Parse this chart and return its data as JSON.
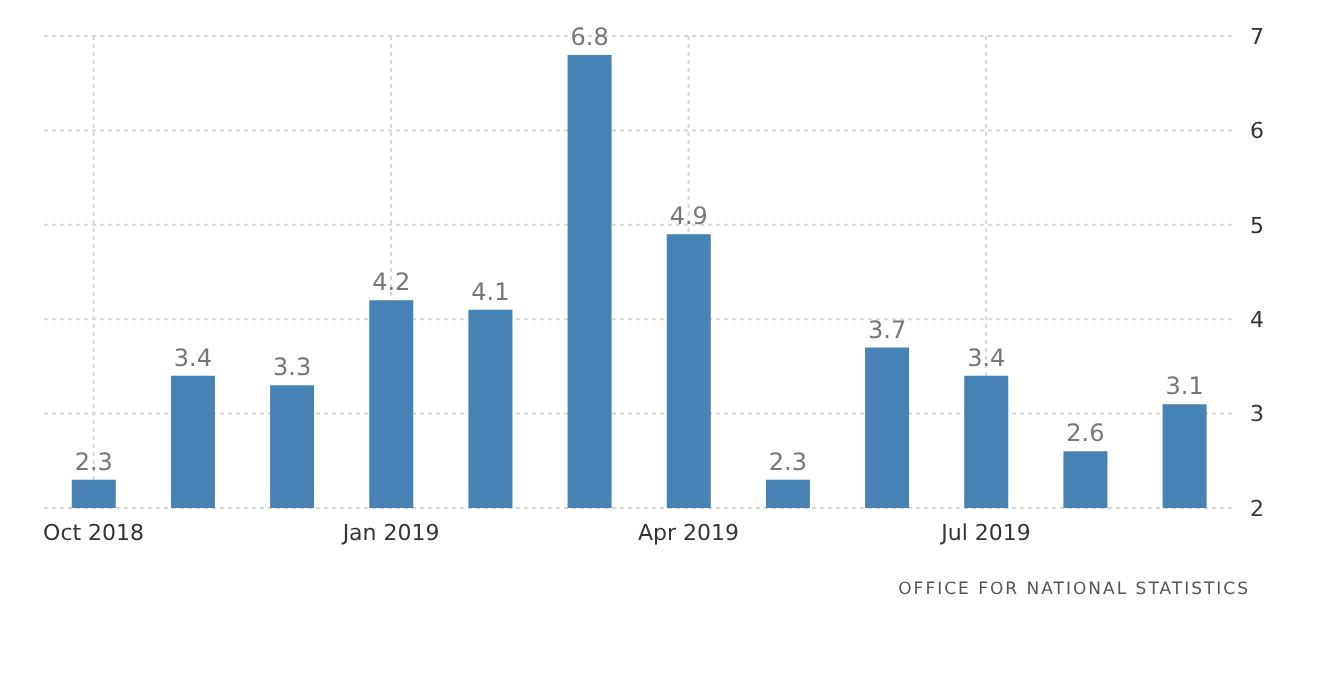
{
  "chart_data": {
    "type": "bar",
    "categories": [
      "Oct 2018",
      null,
      null,
      "Jan 2019",
      null,
      null,
      "Apr 2019",
      null,
      null,
      "Jul 2019",
      null,
      null
    ],
    "values": [
      2.3,
      3.4,
      3.3,
      4.2,
      4.1,
      6.8,
      4.9,
      2.3,
      3.7,
      3.4,
      2.6,
      3.1
    ],
    "color": "#4682b4",
    "ylim": [
      2,
      7
    ],
    "yticks": [
      2,
      3,
      4,
      5,
      6,
      7
    ],
    "grid": true,
    "data_labels": true,
    "annotations": [
      "OFFICE FOR NATIONAL STATISTICS"
    ]
  }
}
